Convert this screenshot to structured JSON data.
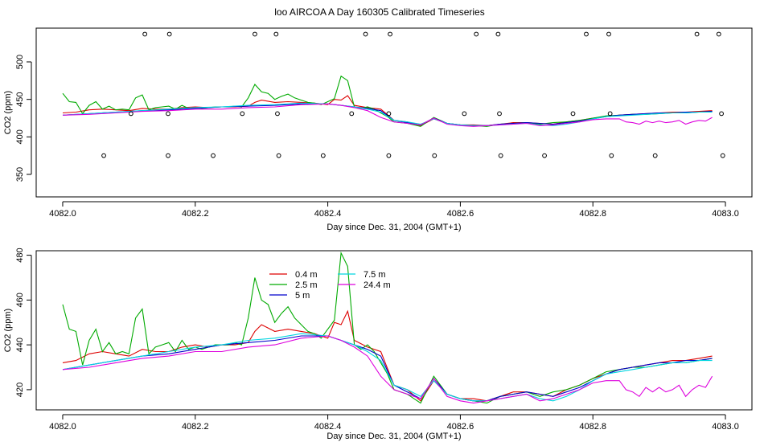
{
  "title": "loo AIRCOA A  Day 160305  Calibrated Timeseries",
  "colors": {
    "0.4 m": "#dd0000",
    "2.5 m": "#00aa00",
    "5 m": "#0000cc",
    "7.5 m": "#00d5e0",
    "24.4 m": "#dd00dd"
  },
  "chart_data": [
    {
      "type": "line",
      "xlabel": "Day since Dec. 31, 2004 (GMT+1)",
      "ylabel": "CO2 (ppm)",
      "xlim": [
        4081.96,
        4083.04
      ],
      "ylim": [
        320,
        545
      ],
      "xticks": [
        4082.0,
        4082.2,
        4082.4,
        4082.6,
        4082.8,
        4083.0
      ],
      "xtick_labels": [
        "4082.0",
        "4082.2",
        "4082.4",
        "4082.6",
        "4082.8",
        "4083.0"
      ],
      "yticks": [
        350,
        400,
        450,
        500
      ],
      "ytick_labels": [
        "350",
        "400",
        "450",
        "500"
      ],
      "markers": {
        "high": {
          "y": 537,
          "x": [
            4082.124,
            4082.161,
            4082.29,
            4082.322,
            4082.457,
            4082.494,
            4082.624,
            4082.657,
            4082.79,
            4082.824,
            4082.957,
            4082.99
          ]
        },
        "mid": {
          "y": 431,
          "x": [
            4082.103,
            4082.159,
            4082.271,
            4082.324,
            4082.436,
            4082.492,
            4082.606,
            4082.659,
            4082.77,
            4082.826,
            4082.994
          ]
        },
        "low": {
          "y": 375,
          "x": [
            4082.062,
            4082.159,
            4082.227,
            4082.326,
            4082.393,
            4082.492,
            4082.561,
            4082.661,
            4082.727,
            4082.828,
            4082.894,
            4082.996
          ]
        }
      }
    },
    {
      "type": "line",
      "xlabel": "Day since Dec. 31, 2004 (GMT+1)",
      "ylabel": "CO2 (ppm)",
      "xlim": [
        4081.96,
        4083.04
      ],
      "ylim": [
        411,
        482
      ],
      "xticks": [
        4082.0,
        4082.2,
        4082.4,
        4082.6,
        4082.8,
        4083.0
      ],
      "xtick_labels": [
        "4082.0",
        "4082.2",
        "4082.4",
        "4082.6",
        "4082.8",
        "4083.0"
      ],
      "yticks": [
        420,
        440,
        460,
        480
      ],
      "ytick_labels": [
        "420",
        "440",
        "460",
        "480"
      ],
      "legend": {
        "placement": "top-left",
        "entries": [
          "0.4 m",
          "2.5 m",
          "5 m",
          "7.5 m",
          "24.4 m"
        ]
      }
    }
  ],
  "series": [
    {
      "name": "0.4 m",
      "x": [
        4082.0,
        4082.02,
        4082.04,
        4082.06,
        4082.08,
        4082.1,
        4082.12,
        4082.14,
        4082.16,
        4082.18,
        4082.2,
        4082.22,
        4082.24,
        4082.26,
        4082.28,
        4082.29,
        4082.3,
        4082.32,
        4082.34,
        4082.36,
        4082.38,
        4082.4,
        4082.41,
        4082.42,
        4082.43,
        4082.44,
        4082.46,
        4082.48,
        4082.5,
        4082.52,
        4082.54,
        4082.56,
        4082.58,
        4082.6,
        4082.62,
        4082.64,
        4082.66,
        4082.68,
        4082.7,
        4082.72,
        4082.74,
        4082.76,
        4082.78,
        4082.8,
        4082.82,
        4082.84,
        4082.86,
        4082.88,
        4082.9,
        4082.92,
        4082.94,
        4082.96,
        4082.98
      ],
      "y": [
        432,
        433,
        436,
        437,
        436,
        435,
        438,
        437,
        437,
        439,
        440,
        439,
        440,
        440,
        441,
        446,
        449,
        446,
        447,
        446,
        445,
        443,
        450,
        449,
        455,
        442,
        439,
        437,
        422,
        420,
        415,
        424,
        418,
        416,
        416,
        415,
        417,
        419,
        419,
        418,
        417,
        420,
        422,
        425,
        427,
        429,
        430,
        431,
        432,
        433,
        433,
        434,
        435
      ]
    },
    {
      "name": "2.5 m",
      "x": [
        4082.0,
        4082.01,
        4082.02,
        4082.03,
        4082.04,
        4082.05,
        4082.06,
        4082.07,
        4082.08,
        4082.09,
        4082.1,
        4082.11,
        4082.12,
        4082.13,
        4082.14,
        4082.15,
        4082.16,
        4082.17,
        4082.18,
        4082.19,
        4082.2,
        4082.21,
        4082.22,
        4082.23,
        4082.24,
        4082.25,
        4082.26,
        4082.27,
        4082.28,
        4082.29,
        4082.3,
        4082.31,
        4082.32,
        4082.33,
        4082.34,
        4082.35,
        4082.36,
        4082.37,
        4082.38,
        4082.39,
        4082.4,
        4082.41,
        4082.42,
        4082.43,
        4082.44,
        4082.45,
        4082.46,
        4082.47,
        4082.48,
        4082.49,
        4082.5,
        4082.52,
        4082.54,
        4082.56,
        4082.58,
        4082.6,
        4082.62,
        4082.64,
        4082.66,
        4082.68,
        4082.7,
        4082.72,
        4082.74,
        4082.76,
        4082.78,
        4082.8,
        4082.82,
        4082.84,
        4082.86,
        4082.88,
        4082.9,
        4082.92,
        4082.94,
        4082.96,
        4082.98
      ],
      "y": [
        458,
        447,
        446,
        431,
        442,
        447,
        437,
        441,
        436,
        437,
        436,
        452,
        456,
        436,
        439,
        440,
        441,
        437,
        442,
        438,
        439,
        438,
        439,
        440,
        440,
        440,
        441,
        440,
        452,
        470,
        460,
        458,
        450,
        454,
        457,
        452,
        449,
        446,
        445,
        443,
        447,
        451,
        481,
        475,
        440,
        438,
        440,
        437,
        432,
        427,
        420,
        418,
        414,
        426,
        418,
        416,
        415,
        414,
        417,
        418,
        419,
        417,
        419,
        420,
        422,
        425,
        428,
        429,
        430,
        430,
        431,
        432,
        432,
        433,
        434
      ]
    },
    {
      "name": "5 m",
      "x": [
        4082.0,
        4082.04,
        4082.08,
        4082.12,
        4082.16,
        4082.2,
        4082.24,
        4082.28,
        4082.32,
        4082.36,
        4082.4,
        4082.42,
        4082.44,
        4082.46,
        4082.48,
        4082.5,
        4082.52,
        4082.54,
        4082.56,
        4082.58,
        4082.6,
        4082.62,
        4082.64,
        4082.66,
        4082.68,
        4082.7,
        4082.72,
        4082.74,
        4082.76,
        4082.78,
        4082.8,
        4082.82,
        4082.84,
        4082.86,
        4082.88,
        4082.9,
        4082.92,
        4082.94,
        4082.96,
        4082.98
      ],
      "y": [
        429,
        431,
        433,
        435,
        436,
        438,
        440,
        441,
        442,
        444,
        444,
        442,
        440,
        438,
        435,
        422,
        419,
        416,
        425,
        418,
        416,
        415,
        415,
        417,
        418,
        419,
        418,
        417,
        419,
        421,
        424,
        427,
        429,
        430,
        431,
        432,
        432,
        433,
        433,
        434
      ]
    },
    {
      "name": "7.5 m",
      "x": [
        4082.0,
        4082.04,
        4082.08,
        4082.12,
        4082.16,
        4082.2,
        4082.24,
        4082.28,
        4082.32,
        4082.36,
        4082.4,
        4082.42,
        4082.44,
        4082.46,
        4082.48,
        4082.5,
        4082.52,
        4082.54,
        4082.56,
        4082.58,
        4082.6,
        4082.62,
        4082.64,
        4082.66,
        4082.68,
        4082.7,
        4082.72,
        4082.74,
        4082.76,
        4082.78,
        4082.8,
        4082.82,
        4082.84,
        4082.86,
        4082.88,
        4082.9,
        4082.92,
        4082.94,
        4082.96,
        4082.98
      ],
      "y": [
        429,
        431,
        433,
        435,
        437,
        439,
        440,
        442,
        443,
        445,
        444,
        442,
        440,
        437,
        433,
        422,
        420,
        417,
        424,
        418,
        416,
        415,
        415,
        416,
        417,
        418,
        416,
        415,
        417,
        420,
        424,
        427,
        428,
        429,
        430,
        431,
        432,
        432,
        433,
        433
      ]
    },
    {
      "name": "24.4 m",
      "x": [
        4082.0,
        4082.04,
        4082.08,
        4082.12,
        4082.16,
        4082.2,
        4082.24,
        4082.28,
        4082.32,
        4082.36,
        4082.4,
        4082.42,
        4082.44,
        4082.46,
        4082.48,
        4082.5,
        4082.52,
        4082.54,
        4082.56,
        4082.58,
        4082.6,
        4082.62,
        4082.64,
        4082.66,
        4082.68,
        4082.7,
        4082.72,
        4082.74,
        4082.76,
        4082.78,
        4082.8,
        4082.82,
        4082.84,
        4082.85,
        4082.86,
        4082.87,
        4082.88,
        4082.89,
        4082.9,
        4082.91,
        4082.92,
        4082.93,
        4082.94,
        4082.95,
        4082.96,
        4082.97,
        4082.98
      ],
      "y": [
        429,
        430,
        432,
        434,
        435,
        437,
        437,
        439,
        440,
        443,
        444,
        442,
        439,
        435,
        426,
        420,
        418,
        416,
        425,
        417,
        415,
        414,
        415,
        416,
        417,
        418,
        415,
        416,
        418,
        420,
        423,
        424,
        424,
        420,
        419,
        417,
        421,
        419,
        421,
        419,
        420,
        422,
        417,
        420,
        422,
        421,
        426
      ]
    }
  ]
}
